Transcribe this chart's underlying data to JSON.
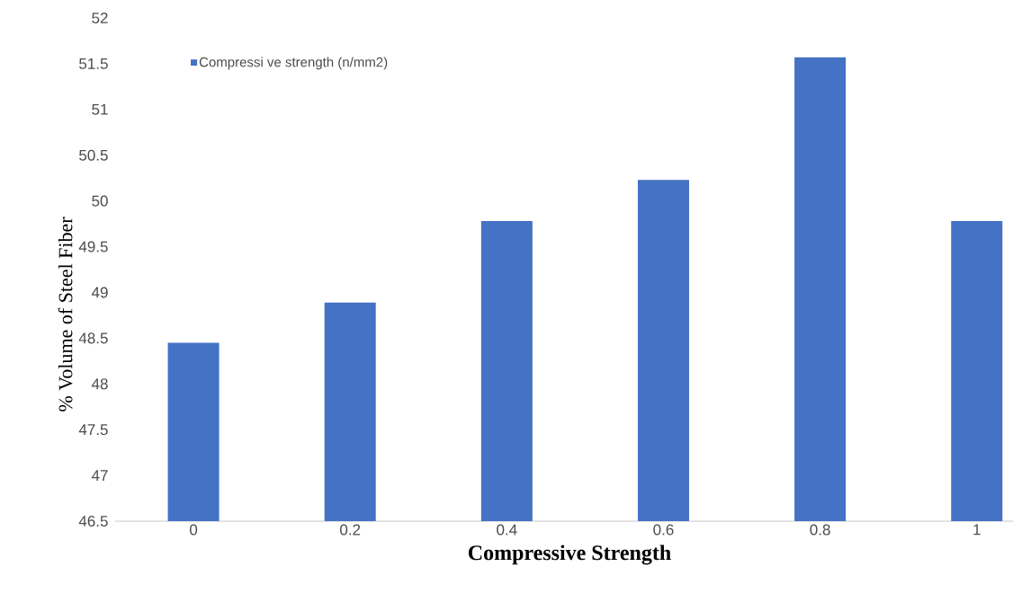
{
  "chart_data": {
    "type": "bar",
    "xlabel": "Compressive Strength",
    "ylabel": "% Volume  of Steel Fiber",
    "categories": [
      "0",
      "0.2",
      "0.4",
      "0.6",
      "0.8",
      "1"
    ],
    "series": [
      {
        "name": "Compressi ve strength (n/mm2)",
        "color": "#4472c4",
        "values": [
          48.45,
          48.89,
          49.78,
          50.23,
          51.57,
          49.78
        ]
      }
    ],
    "ylim": [
      46.5,
      52
    ],
    "yticks": [
      46.5,
      47,
      47.5,
      48,
      48.5,
      49,
      49.5,
      50,
      50.5,
      51,
      51.5,
      52
    ],
    "grid": false,
    "legend": "top left"
  }
}
